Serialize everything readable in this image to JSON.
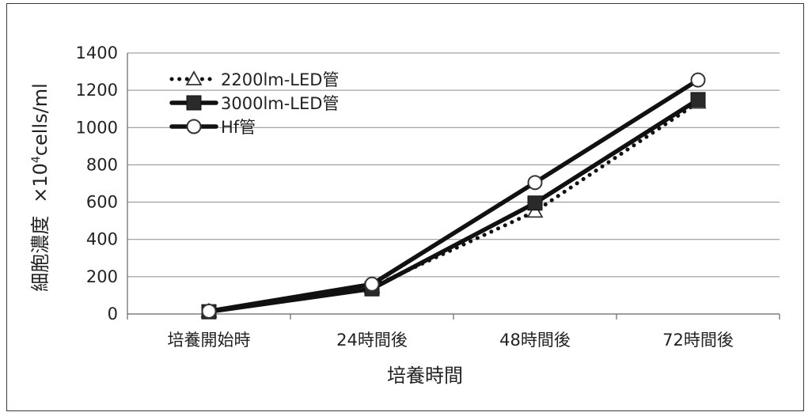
{
  "chart_data": {
    "type": "line",
    "title": "",
    "xlabel": "培養時間",
    "ylabel": "細胞濃度　×10⁴cells/ml",
    "ylabel_main": "細胞濃度",
    "ylabel_unit_prefix": "×10",
    "ylabel_unit_sup": "4",
    "ylabel_unit_suffix": "cells/ml",
    "categories": [
      "培養開始時",
      "24時間後",
      "48時間後",
      "72時間後"
    ],
    "ylim": [
      0,
      1400
    ],
    "yticks": [
      "0",
      "200",
      "400",
      "600",
      "800",
      "1000",
      "1200",
      "1400"
    ],
    "grid": true,
    "legend_position": "top-left",
    "series": [
      {
        "name": "2200lm-LED管",
        "values": [
          15,
          145,
          550,
          1135
        ],
        "style": "dotted",
        "marker": "triangle-open",
        "color": "#111111"
      },
      {
        "name": "3000lm-LED管",
        "values": [
          12,
          135,
          595,
          1150
        ],
        "style": "solid",
        "marker": "square-filled",
        "color": "#111111"
      },
      {
        "name": "Hf管",
        "values": [
          15,
          160,
          705,
          1255
        ],
        "style": "solid",
        "marker": "circle-open",
        "color": "#111111"
      }
    ]
  }
}
